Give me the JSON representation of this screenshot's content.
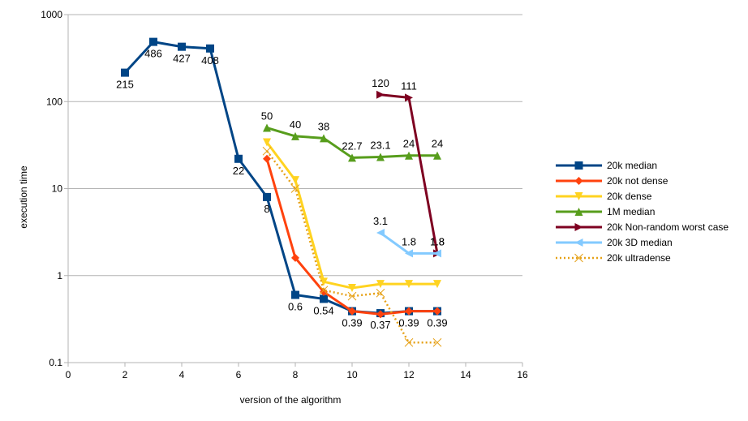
{
  "chart_data": {
    "type": "line",
    "title": "",
    "xlabel": "version of the algorithm",
    "ylabel": "execution time",
    "xlim": [
      0,
      16
    ],
    "ylim": [
      0.1,
      1000
    ],
    "yscale": "log",
    "grid": "horizontal",
    "legend_position": "right",
    "x_ticks": [
      "0",
      "2",
      "4",
      "6",
      "8",
      "10",
      "12",
      "14",
      "16"
    ],
    "y_ticks": [
      "0.1",
      "1",
      "10",
      "100",
      "1000"
    ],
    "series": [
      {
        "name": "20k median",
        "color": "#004586",
        "marker": "square",
        "dash": "solid",
        "points": [
          [
            2,
            215
          ],
          [
            3,
            486
          ],
          [
            4,
            427
          ],
          [
            5,
            408
          ],
          [
            6,
            22
          ],
          [
            7,
            8
          ],
          [
            8,
            0.6
          ],
          [
            9,
            0.54
          ],
          [
            10,
            0.39
          ],
          [
            11,
            0.37
          ],
          [
            12,
            0.39
          ],
          [
            13,
            0.39
          ]
        ],
        "labels": [
          "215",
          "486",
          "427",
          "408",
          "22",
          "8",
          "0.6",
          "0.54",
          "0.39",
          "0.37",
          "0.39",
          "0.39"
        ],
        "label_pos": "below"
      },
      {
        "name": "20k not dense",
        "color": "#ff420e",
        "marker": "diamond",
        "dash": "solid",
        "points": [
          [
            7,
            22
          ],
          [
            8,
            1.6
          ],
          [
            9,
            0.65
          ],
          [
            10,
            0.39
          ],
          [
            11,
            0.36
          ],
          [
            12,
            0.39
          ],
          [
            13,
            0.39
          ]
        ],
        "labels": [],
        "label_pos": "none"
      },
      {
        "name": "20k dense",
        "color": "#ffd320",
        "marker": "triangle-down",
        "dash": "solid",
        "points": [
          [
            7,
            34
          ],
          [
            8,
            12.5
          ],
          [
            9,
            0.85
          ],
          [
            10,
            0.72
          ],
          [
            11,
            0.8
          ],
          [
            12,
            0.8
          ],
          [
            13,
            0.8
          ]
        ],
        "labels": [],
        "label_pos": "none"
      },
      {
        "name": "1M median",
        "color": "#579d1c",
        "marker": "triangle-up",
        "dash": "solid",
        "points": [
          [
            7,
            50
          ],
          [
            8,
            40
          ],
          [
            9,
            38
          ],
          [
            10,
            22.7
          ],
          [
            11,
            23.1
          ],
          [
            12,
            24
          ],
          [
            13,
            24
          ]
        ],
        "labels": [
          "50",
          "40",
          "38",
          "22.7",
          "23.1",
          "24",
          "24"
        ],
        "label_pos": "above"
      },
      {
        "name": "20k Non-random worst case",
        "color": "#7e0021",
        "marker": "triangle-right",
        "dash": "solid",
        "points": [
          [
            11,
            120
          ],
          [
            12,
            111
          ],
          [
            13,
            1.8
          ]
        ],
        "labels": [
          "120",
          "111",
          "1.8"
        ],
        "label_pos": "above"
      },
      {
        "name": "20k 3D median",
        "color": "#83caff",
        "marker": "triangle-left",
        "dash": "solid",
        "points": [
          [
            11,
            3.1
          ],
          [
            12,
            1.8
          ],
          [
            13,
            1.8
          ]
        ],
        "labels": [
          "3.1",
          "1.8",
          "1.8"
        ],
        "label_pos": "above"
      },
      {
        "name": "20k ultradense",
        "color": "#e6a117",
        "marker": "bowtie",
        "dash": "dotted",
        "points": [
          [
            7,
            27
          ],
          [
            8,
            10
          ],
          [
            9,
            0.68
          ],
          [
            10,
            0.58
          ],
          [
            11,
            0.63
          ],
          [
            12,
            0.17
          ],
          [
            13,
            0.17
          ]
        ],
        "labels": [],
        "label_pos": "none"
      }
    ]
  }
}
